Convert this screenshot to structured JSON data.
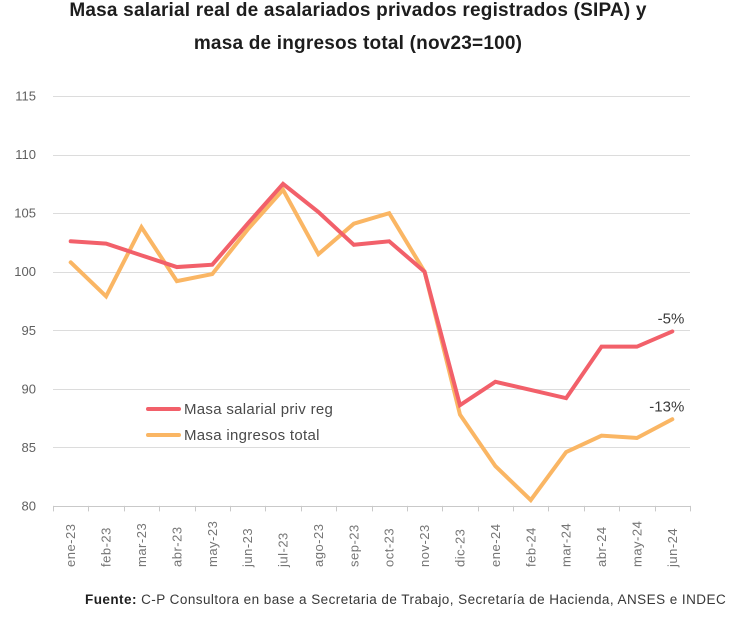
{
  "title": {
    "line1": "Masa salarial real de asalariados privados registrados (SIPA) y",
    "line2": "masa de ingresos total (nov23=100)"
  },
  "chart_data": {
    "type": "line",
    "categories": [
      "ene-23",
      "feb-23",
      "mar-23",
      "abr-23",
      "may-23",
      "jun-23",
      "jul-23",
      "ago-23",
      "sep-23",
      "oct-23",
      "nov-23",
      "dic-23",
      "ene-24",
      "feb-24",
      "mar-24",
      "abr-24",
      "may-24",
      "jun-24"
    ],
    "series": [
      {
        "name": "Masa salarial priv reg",
        "color": "#F2606A",
        "values": [
          102.6,
          102.4,
          101.4,
          100.4,
          100.6,
          104.1,
          107.5,
          105.1,
          102.3,
          102.6,
          100.0,
          88.6,
          90.6,
          89.9,
          89.2,
          93.6,
          93.6,
          94.9
        ]
      },
      {
        "name": "Masa ingresos total",
        "color": "#FAB664",
        "values": [
          100.8,
          97.9,
          103.8,
          99.2,
          99.8,
          103.6,
          107.0,
          101.5,
          104.1,
          105.0,
          100.0,
          87.8,
          83.4,
          80.5,
          84.6,
          86.0,
          85.8,
          87.4
        ]
      }
    ],
    "ylim": [
      80,
      115
    ],
    "yticks": [
      80,
      85,
      90,
      95,
      100,
      105,
      110,
      115
    ],
    "grid": "horizontal",
    "legend_position": "inside-left-middle",
    "annotations": [
      {
        "text": "-5%",
        "series": 0
      },
      {
        "text": "-13%",
        "series": 1
      }
    ],
    "title": "Masa salarial real de asalariados privados registrados (SIPA) y masa de ingresos total (nov23=100)",
    "xlabel": "",
    "ylabel": ""
  },
  "colors": {
    "grid": "#DCDCDC",
    "axis": "#C9C9C9",
    "y_label": "#606060",
    "x_label": "#757575",
    "annotation": "#3A3A3A"
  },
  "fuente": {
    "label": "Fuente:",
    "text": " C-P Consultora en base a Secretaria de Trabajo, Secretaría de Hacienda, ANSES e INDEC"
  }
}
